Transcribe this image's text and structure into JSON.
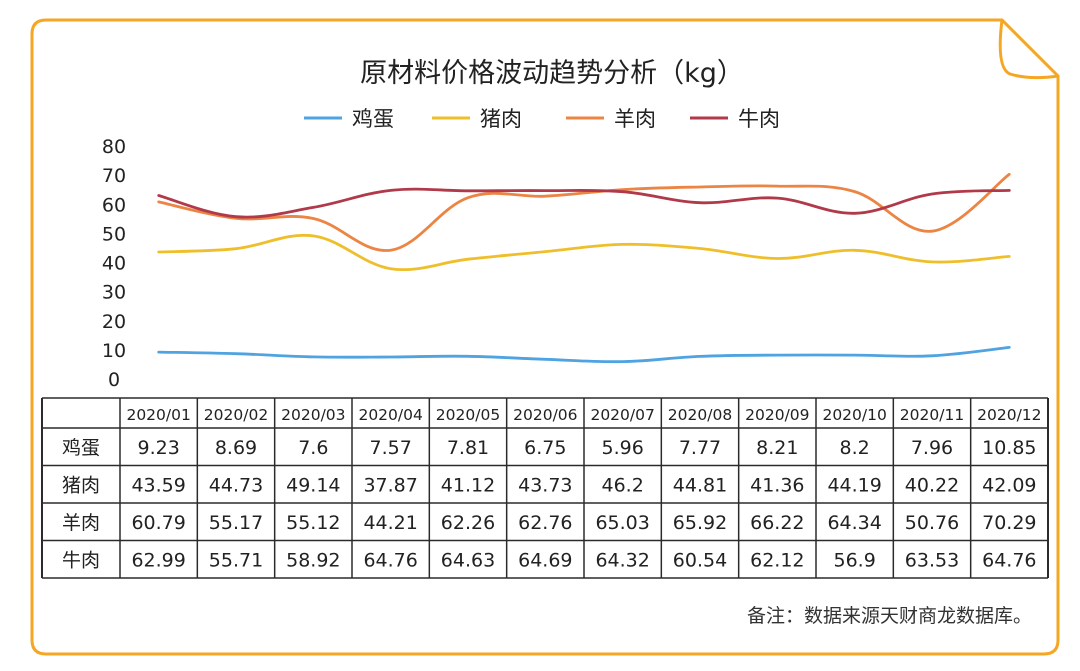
{
  "chart_data": {
    "type": "line",
    "title": "原材料价格波动趋势分析（kg）",
    "categories": [
      "2020/01",
      "2020/02",
      "2020/03",
      "2020/04",
      "2020/05",
      "2020/06",
      "2020/07",
      "2020/08",
      "2020/09",
      "2020/10",
      "2020/11",
      "2020/12"
    ],
    "yticks": [
      "0",
      "10",
      "20",
      "30",
      "40",
      "50",
      "60",
      "70",
      "80"
    ],
    "ylim": [
      0,
      80
    ],
    "legend_position": "top-center",
    "grid": false,
    "series": [
      {
        "name": "鸡蛋",
        "color": "#4ea3e0",
        "values": [
          9.23,
          8.69,
          7.6,
          7.57,
          7.81,
          6.75,
          5.96,
          7.77,
          8.21,
          8.2,
          7.96,
          10.85
        ],
        "labels": [
          "9.23",
          "8.69",
          "7.6",
          "7.57",
          "7.81",
          "6.75",
          "5.96",
          "7.77",
          "8.21",
          "8.2",
          "7.96",
          "10.85"
        ]
      },
      {
        "name": "猪肉",
        "color": "#efbf2b",
        "values": [
          43.59,
          44.73,
          49.14,
          37.87,
          41.12,
          43.73,
          46.2,
          44.81,
          41.36,
          44.19,
          40.22,
          42.09
        ],
        "labels": [
          "43.59",
          "44.73",
          "49.14",
          "37.87",
          "41.12",
          "43.73",
          "46.2",
          "44.81",
          "41.36",
          "44.19",
          "40.22",
          "42.09"
        ]
      },
      {
        "name": "羊肉",
        "color": "#ec8443",
        "values": [
          60.79,
          55.17,
          55.12,
          44.21,
          62.26,
          62.76,
          65.03,
          65.92,
          66.22,
          64.34,
          50.76,
          70.29
        ],
        "labels": [
          "60.79",
          "55.17",
          "55.12",
          "44.21",
          "62.26",
          "62.76",
          "65.03",
          "65.92",
          "66.22",
          "64.34",
          "50.76",
          "70.29"
        ]
      },
      {
        "name": "牛肉",
        "color": "#b03a4a",
        "values": [
          62.99,
          55.71,
          58.92,
          64.76,
          64.63,
          64.69,
          64.32,
          60.54,
          62.12,
          56.9,
          63.53,
          64.76
        ],
        "labels": [
          "62.99",
          "55.71",
          "58.92",
          "64.76",
          "64.63",
          "64.69",
          "64.32",
          "60.54",
          "62.12",
          "56.9",
          "63.53",
          "64.76"
        ]
      }
    ],
    "note": "备注：数据来源天财商龙数据库。"
  },
  "colors": {
    "frame": "#f5a623",
    "table_border": "#2b2b2b",
    "text": "#222222"
  }
}
